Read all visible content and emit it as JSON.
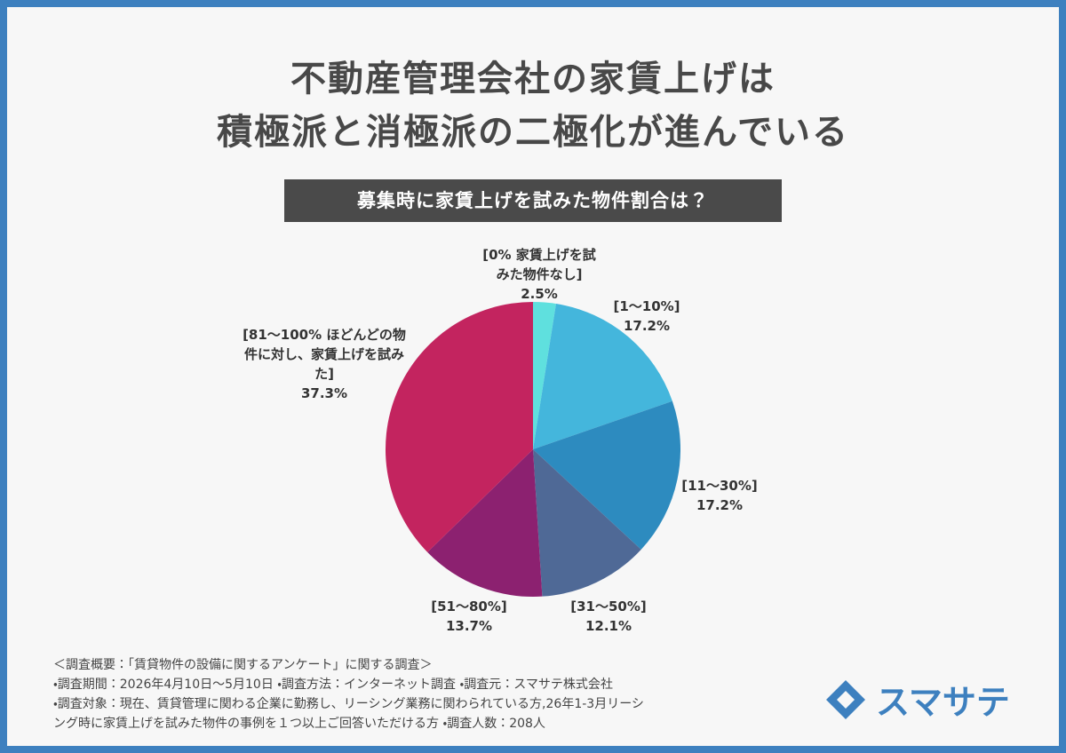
{
  "chart_data": {
    "type": "pie",
    "title": [
      "不動産管理会社の家賃上げは",
      "積極派と消極派の二極化が進んでいる"
    ],
    "subtitle": "募集時に家賃上げを試みた物件割合は？",
    "categories": [
      "[0% 家賃上げを試みた物件なし]",
      "[1〜10%]",
      "[11〜30%]",
      "[31〜50%]",
      "[51〜80%]",
      "[81〜100% ほどんどの物件に対し、家賃上げを試みた]"
    ],
    "values": [
      2.5,
      17.2,
      17.2,
      12.1,
      13.7,
      37.3
    ],
    "value_labels": [
      "2.5%",
      "17.2%",
      "17.2%",
      "12.1%",
      "13.7%",
      "37.3%"
    ],
    "colors": [
      "#5fe0de",
      "#44b6dc",
      "#2d8bbf",
      "#4f6996",
      "#8c2170",
      "#c3245f"
    ]
  },
  "footnotes": [
    "＜調査概要：「賃貸物件の設備に関するアンケート」に関する調査＞",
    "・調査期間：2026年4月10日〜5月10日 ・調査方法：インターネット調査 ・調査元：スマサテ株式会社",
    "・調査対象：現在、賃貸管理に関わる企業に勤務し、リーシング業務に関わられている方,26年1-3月リーシ",
    "ング時に家賃上げを試みた物件の事例を１つ以上ご回答いただける方 ・調査人数：208人"
  ],
  "logo": "スマサテ"
}
